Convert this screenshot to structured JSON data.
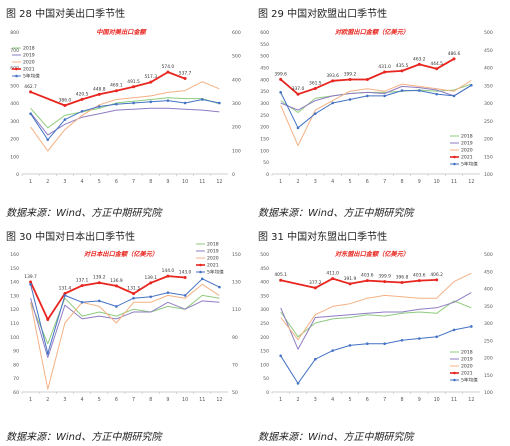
{
  "panels": [
    {
      "caption": "图 28   中国对美出口季节性"
    },
    {
      "caption": "图 29   中国对欧盟出口季节性"
    },
    {
      "caption": "图 30   中国对日本出口季节性"
    },
    {
      "caption": "图 31   中国对东盟出口季节性"
    }
  ],
  "source_text": "数据来源：Wind、方正中期研究院",
  "colors": {
    "2018": "#8FCB7E",
    "2019": "#8E7CC3",
    "2020": "#F4B183",
    "2021": "#E8251F",
    "avg5": "#4472C4"
  },
  "chart_data": [
    {
      "type": "line",
      "title": "中国对美出口金额",
      "categories": [
        "1",
        "2",
        "3",
        "4",
        "5",
        "6",
        "7",
        "8",
        "9",
        "10",
        "11",
        "12"
      ],
      "y_left": {
        "ticks": [
          0,
          100,
          200,
          300,
          400,
          500,
          600,
          700,
          800
        ],
        "ylim": [
          0,
          800
        ]
      },
      "y_right": {
        "ticks": [
          0,
          100,
          200,
          300,
          400,
          500,
          600
        ],
        "ylim": [
          0,
          600
        ]
      },
      "series": [
        {
          "name": "2018",
          "axis": "left",
          "values": [
            370,
            260,
            330,
            350,
            370,
            400,
            410,
            420,
            430,
            425,
            425,
            395
          ]
        },
        {
          "name": "2019",
          "axis": "left",
          "values": [
            345,
            220,
            280,
            320,
            340,
            360,
            365,
            370,
            370,
            365,
            360,
            350
          ]
        },
        {
          "name": "2020",
          "axis": "left",
          "values": [
            265,
            130,
            250,
            330,
            390,
            420,
            430,
            440,
            460,
            470,
            520,
            480
          ]
        },
        {
          "name": "2021",
          "axis": "left",
          "values": [
            462.7,
            null,
            386.0,
            420.5,
            448.8,
            469.1,
            491.5,
            517.3,
            574.0,
            537.7,
            null,
            null
          ],
          "labels": [
            "462.7",
            "",
            "386.0",
            "420.5",
            "448.8",
            "469.1",
            "491.5",
            "517.3",
            "574.0",
            "537.7",
            "",
            ""
          ]
        },
        {
          "name": "5年均值",
          "axis": "right",
          "values": [
            255,
            145,
            230,
            265,
            285,
            295,
            300,
            305,
            310,
            300,
            315,
            300
          ]
        }
      ]
    },
    {
      "type": "line",
      "title": "对欧盟出口金额（亿美元）",
      "categories": [
        "1",
        "2",
        "3",
        "4",
        "5",
        "6",
        "7",
        "8",
        "9",
        "10",
        "11",
        "12"
      ],
      "y_left": {
        "ticks": [
          0,
          50,
          100,
          150,
          200,
          250,
          300,
          350,
          400,
          450,
          500,
          550,
          600
        ],
        "ylim": [
          0,
          600
        ]
      },
      "y_right": {
        "ticks": [
          100,
          150,
          200,
          250,
          300,
          350,
          400,
          450,
          500
        ],
        "ylim": [
          100,
          500
        ]
      },
      "series": [
        {
          "name": "2018",
          "axis": "left",
          "values": [
            310,
            260,
            320,
            330,
            340,
            345,
            345,
            350,
            355,
            350,
            355,
            380
          ]
        },
        {
          "name": "2019",
          "axis": "left",
          "values": [
            300,
            270,
            310,
            330,
            340,
            345,
            340,
            370,
            365,
            355,
            330,
            375
          ]
        },
        {
          "name": "2020",
          "axis": "left",
          "values": [
            290,
            120,
            270,
            310,
            350,
            360,
            350,
            380,
            370,
            360,
            350,
            395
          ]
        },
        {
          "name": "2021",
          "axis": "left",
          "values": [
            399.6,
            337.0,
            361.5,
            393.6,
            399.2,
            399.2,
            431.0,
            435.5,
            463.2,
            444.5,
            486.6,
            null
          ],
          "labels": [
            "399.6",
            "337.0",
            "361.5",
            "393.6",
            "399.2",
            "",
            "431.0",
            "435.5",
            "463.2",
            "444.5",
            "486.6",
            ""
          ]
        },
        {
          "name": "5年均值",
          "axis": "right",
          "values": [
            330,
            230,
            270,
            300,
            310,
            320,
            320,
            335,
            335,
            325,
            320,
            350
          ]
        }
      ]
    },
    {
      "type": "line",
      "title": "对日本出口金额（亿美元）",
      "categories": [
        "1",
        "2",
        "3",
        "4",
        "5",
        "6",
        "7",
        "8",
        "9",
        "10",
        "11",
        "12"
      ],
      "y_left": {
        "ticks": [
          60,
          70,
          80,
          90,
          100,
          110,
          120,
          130,
          140,
          150,
          160
        ],
        "ylim": [
          60,
          160
        ]
      },
      "y_right": {
        "ticks": [
          50,
          70,
          90,
          110,
          130,
          150
        ],
        "ylim": [
          50,
          150
        ]
      },
      "series": [
        {
          "name": "2018",
          "axis": "left",
          "values": [
            125,
            95,
            128,
            115,
            118,
            115,
            120,
            118,
            122,
            120,
            130,
            128
          ]
        },
        {
          "name": "2019",
          "axis": "left",
          "values": [
            128,
            85,
            123,
            113,
            115,
            113,
            118,
            118,
            125,
            120,
            126,
            125
          ]
        },
        {
          "name": "2020",
          "axis": "left",
          "values": [
            125,
            62,
            110,
            125,
            122,
            110,
            125,
            125,
            130,
            128,
            138,
            130
          ]
        },
        {
          "name": "2021",
          "axis": "left",
          "values": [
            139.7,
            112.5,
            131.4,
            137.1,
            139.2,
            136.9,
            131.3,
            139.1,
            144.0,
            143.0,
            null,
            null
          ],
          "labels": [
            "139.7",
            "",
            "131.4",
            "137.1",
            "139.2",
            "136.9",
            "131.3",
            "139.1",
            "144.0",
            "143.0",
            "",
            ""
          ]
        },
        {
          "name": "5年均值",
          "axis": "right",
          "values": [
            128,
            78,
            120,
            115,
            116,
            112,
            118,
            119,
            122,
            120,
            132,
            126
          ]
        }
      ]
    },
    {
      "type": "line",
      "title": "对东盟出口金额（亿美元）",
      "categories": [
        "1",
        "2",
        "3",
        "4",
        "5",
        "6",
        "7",
        "8",
        "9",
        "10",
        "11",
        "12"
      ],
      "y_left": {
        "ticks": [
          0,
          50,
          100,
          150,
          200,
          250,
          300,
          350,
          400,
          450,
          500
        ],
        "ylim": [
          0,
          500
        ]
      },
      "y_right": {
        "ticks": [
          100,
          150,
          200,
          250,
          300,
          350,
          400,
          450,
          500
        ],
        "ylim": [
          100,
          500
        ]
      },
      "series": [
        {
          "name": "2018",
          "axis": "left",
          "values": [
            290,
            200,
            250,
            265,
            270,
            280,
            275,
            285,
            290,
            285,
            330,
            305
          ]
        },
        {
          "name": "2019",
          "axis": "left",
          "values": [
            305,
            155,
            270,
            275,
            280,
            285,
            290,
            290,
            300,
            305,
            325,
            360
          ]
        },
        {
          "name": "2020",
          "axis": "left",
          "values": [
            270,
            190,
            280,
            310,
            320,
            340,
            350,
            345,
            340,
            340,
            400,
            430
          ]
        },
        {
          "name": "2021",
          "axis": "left",
          "values": [
            405.1,
            null,
            377.2,
            411.0,
            391.9,
            403.6,
            399.9,
            396.8,
            403.6,
            406.2,
            null,
            null
          ],
          "labels": [
            "405.1",
            "",
            "377.2",
            "411.0",
            "391.9",
            "403.6",
            "399.9",
            "396.8",
            "403.6",
            "406.2",
            "",
            ""
          ]
        },
        {
          "name": "5年均值",
          "axis": "right",
          "values": [
            205,
            125,
            195,
            220,
            235,
            240,
            240,
            250,
            255,
            260,
            280,
            290
          ]
        }
      ]
    }
  ]
}
